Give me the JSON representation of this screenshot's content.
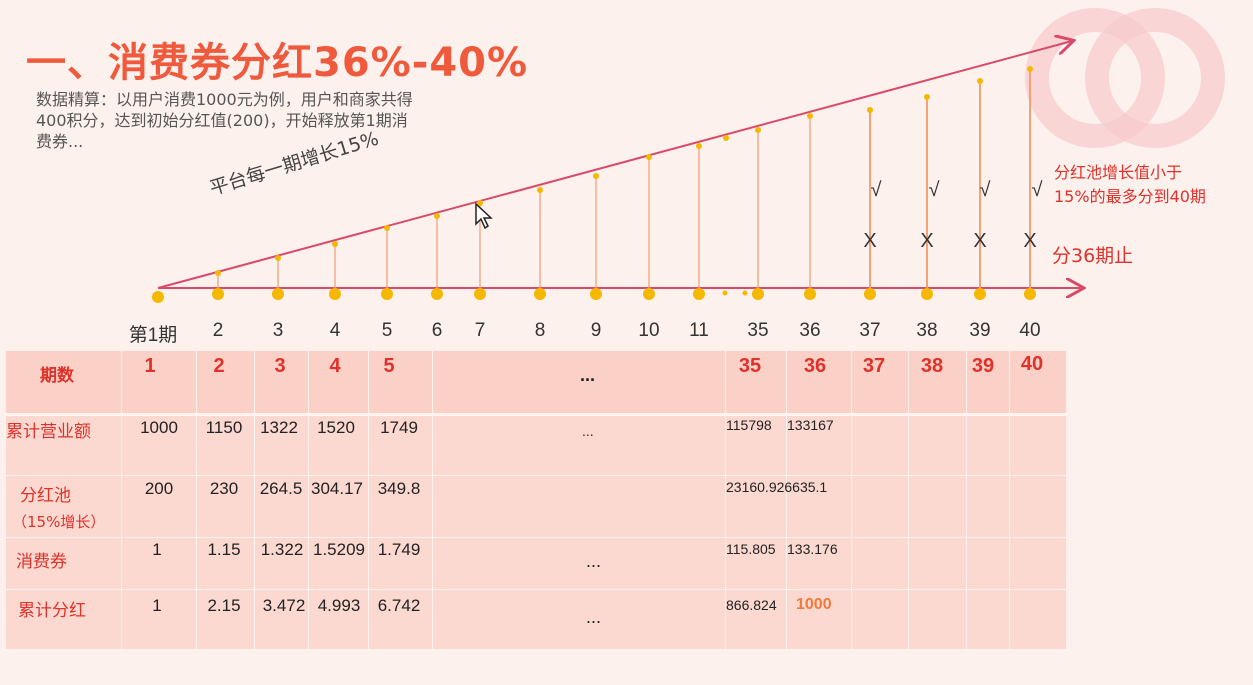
{
  "title": "一、消费券分红36%-40%",
  "description_lines": [
    "数据精算：以用户消费1000元为例，用户和商家共得",
    "400积分，达到初始分红值(200)，开始释放第1期消",
    "费券..."
  ],
  "growth_label": "平台每一期增长15%",
  "axis_labels": [
    "第1期",
    "2",
    "3",
    "4",
    "5",
    "6",
    "7",
    "8",
    "9",
    "10",
    "11",
    "35",
    "36",
    "37",
    "38",
    "39",
    "40"
  ],
  "check_mark": "√",
  "cross_mark": "X",
  "note_lines": [
    "分红池增长值小于",
    "15%的最多分到40期"
  ],
  "stop_note": "分36期止",
  "colors": {
    "accent": "#f05a3c",
    "red": "#e0312a",
    "line": "#d94a6a",
    "dot": "#f5b800",
    "bar": "#f4a178"
  },
  "table": {
    "header_label": "期数",
    "header_values": [
      "1",
      "2",
      "3",
      "4",
      "5",
      "...",
      "35",
      "36",
      "37",
      "38",
      "39",
      "40"
    ],
    "rows": [
      {
        "label": "累计营业额",
        "values": [
          "1000",
          "1150",
          "1322",
          "1520",
          "1749"
        ],
        "ellipsis": "...",
        "v35": "115798",
        "v36": "133167"
      },
      {
        "label": "分红池",
        "sublabel": "（15%增长）",
        "values": [
          "200",
          "230",
          "264.5",
          "304.17",
          "349.8"
        ],
        "v35_36": "23160.926635.1"
      },
      {
        "label": "消费券",
        "values": [
          "1",
          "1.15",
          "1.322",
          "1.5209",
          "1.749"
        ],
        "ellipsis": "...",
        "v35": "115.805",
        "v36": "133.176"
      },
      {
        "label": "累计分红",
        "values": [
          "1",
          "2.15",
          "3.472",
          "4.993",
          "6.742"
        ],
        "ellipsis": "...",
        "v35": "866.824",
        "v36": "1000"
      }
    ]
  }
}
